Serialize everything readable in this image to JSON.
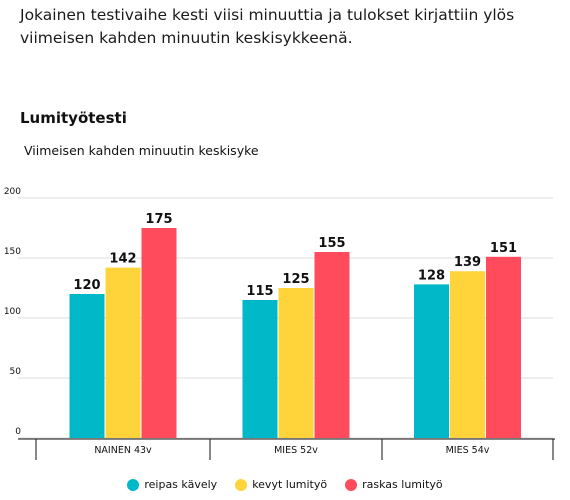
{
  "intro_text": "Jokainen testivaihe kesti viisi minuuttia ja tulokset kirjattiin ylös viimeisen kahden minuutin keskisykkeenä.",
  "chart_data": {
    "type": "bar",
    "title": "Lumityötesti",
    "subtitle": "Viimeisen kahden minuutin keskisyke",
    "categories": [
      "NAINEN 43v",
      "MIES 52v",
      "MIES 54v"
    ],
    "series": [
      {
        "name": "reipas kävely",
        "color": "#00b8c8",
        "values": [
          120,
          115,
          128
        ]
      },
      {
        "name": "kevyt lumityö",
        "color": "#ffd43b",
        "values": [
          142,
          125,
          139
        ]
      },
      {
        "name": "raskas lumityö",
        "color": "#ff4b5c",
        "values": [
          175,
          155,
          151
        ]
      }
    ],
    "y_ticks": [
      "200",
      "150",
      "100",
      "50",
      "0"
    ],
    "ylim": [
      0,
      200
    ],
    "grid": true,
    "legend_position": "bottom"
  }
}
